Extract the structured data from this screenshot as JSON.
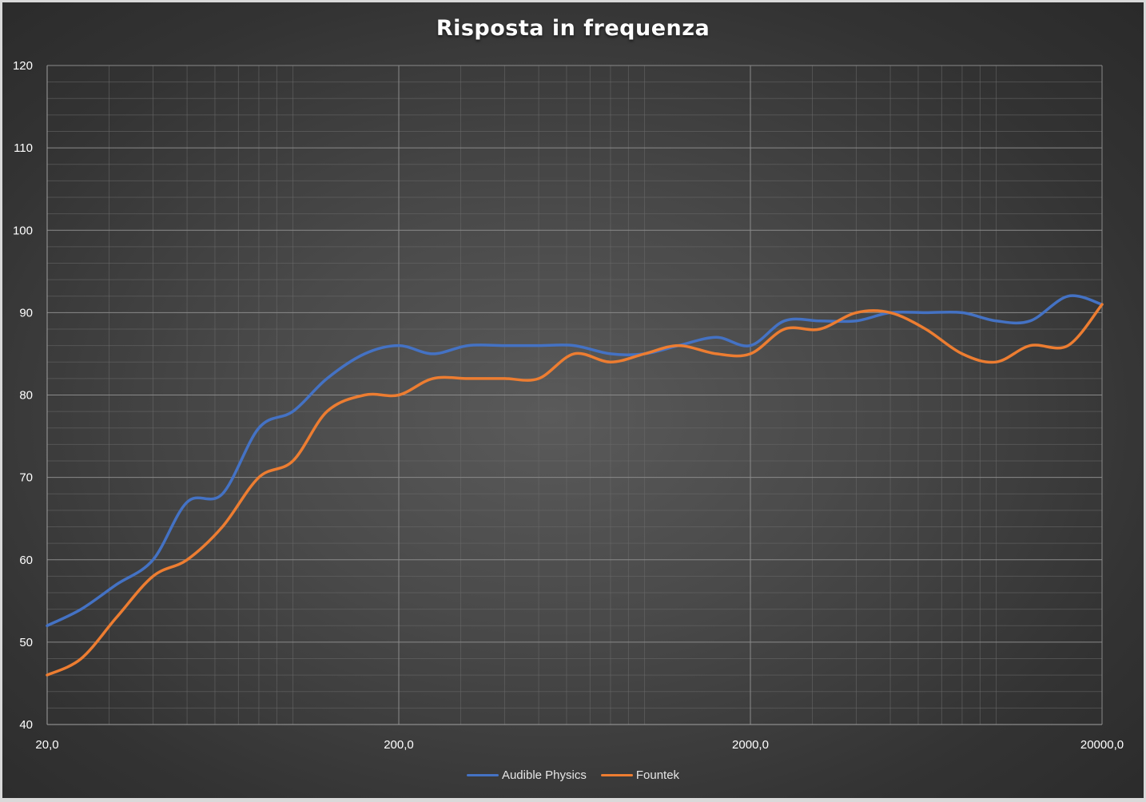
{
  "chart_data": {
    "type": "line",
    "title": "Risposta in frequenza",
    "xlabel": "",
    "ylabel": "",
    "x_scale": "log",
    "xlim": [
      20,
      20000
    ],
    "ylim": [
      40,
      120
    ],
    "y_ticks": [
      "40",
      "50",
      "60",
      "70",
      "80",
      "90",
      "100",
      "110",
      "120"
    ],
    "x_ticks": [
      {
        "value": 20,
        "label": "20,0"
      },
      {
        "value": 200,
        "label": "200,0"
      },
      {
        "value": 2000,
        "label": "2000,0"
      },
      {
        "value": 20000,
        "label": "20000,0"
      }
    ],
    "grid": true,
    "legend_position": "bottom",
    "series": [
      {
        "name": "Audible Physics",
        "color": "#4472c4",
        "points": [
          [
            20,
            52
          ],
          [
            25,
            54
          ],
          [
            31.5,
            57
          ],
          [
            40,
            60
          ],
          [
            50,
            67
          ],
          [
            63,
            68
          ],
          [
            80,
            76
          ],
          [
            100,
            78
          ],
          [
            125,
            82
          ],
          [
            160,
            85
          ],
          [
            200,
            86
          ],
          [
            250,
            85
          ],
          [
            315,
            86
          ],
          [
            400,
            86
          ],
          [
            500,
            86
          ],
          [
            630,
            86
          ],
          [
            800,
            85
          ],
          [
            1000,
            85
          ],
          [
            1250,
            86
          ],
          [
            1600,
            87
          ],
          [
            2000,
            86
          ],
          [
            2500,
            89
          ],
          [
            3150,
            89
          ],
          [
            4000,
            89
          ],
          [
            5000,
            90
          ],
          [
            6300,
            90
          ],
          [
            8000,
            90
          ],
          [
            10000,
            89
          ],
          [
            12500,
            89
          ],
          [
            16000,
            92
          ],
          [
            20000,
            91
          ]
        ]
      },
      {
        "name": "Fountek",
        "color": "#ed7d31",
        "points": [
          [
            20,
            46
          ],
          [
            25,
            48
          ],
          [
            31.5,
            53
          ],
          [
            40,
            58
          ],
          [
            50,
            60
          ],
          [
            63,
            64
          ],
          [
            80,
            70
          ],
          [
            100,
            72
          ],
          [
            125,
            78
          ],
          [
            160,
            80
          ],
          [
            200,
            80
          ],
          [
            250,
            82
          ],
          [
            315,
            82
          ],
          [
            400,
            82
          ],
          [
            500,
            82
          ],
          [
            630,
            85
          ],
          [
            800,
            84
          ],
          [
            1000,
            85
          ],
          [
            1250,
            86
          ],
          [
            1600,
            85
          ],
          [
            2000,
            85
          ],
          [
            2500,
            88
          ],
          [
            3150,
            88
          ],
          [
            4000,
            90
          ],
          [
            5000,
            90
          ],
          [
            6300,
            88
          ],
          [
            8000,
            85
          ],
          [
            10000,
            84
          ],
          [
            12500,
            86
          ],
          [
            16000,
            86
          ],
          [
            20000,
            91
          ]
        ]
      }
    ]
  }
}
